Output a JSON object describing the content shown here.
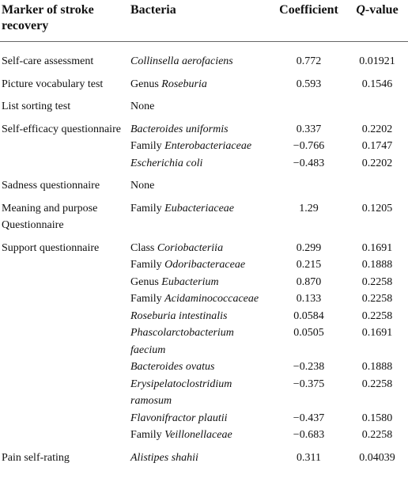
{
  "table": {
    "header": [
      "Marker of stroke recovery",
      "Bacteria",
      "Coefficient",
      {
        "italic": "Q",
        "text": "-value"
      }
    ],
    "rows": [
      {
        "marker": "Self-care assessment",
        "entries": [
          {
            "taxon": "Collinsella aerofaciens",
            "coefficient": "0.772",
            "q": "0.01921"
          }
        ]
      },
      {
        "marker": "Picture vocabulary test",
        "entries": [
          {
            "prefix": "Genus",
            "taxon": "Roseburia",
            "coefficient": "0.593",
            "q": "0.1546"
          }
        ]
      },
      {
        "marker": "List sorting test",
        "entries": [
          {
            "plain": "None"
          }
        ]
      },
      {
        "marker": "Self-efficacy questionnaire",
        "entries": [
          {
            "taxon": "Bacteroides uniformis",
            "coefficient": "0.337",
            "q": "0.2202"
          },
          {
            "prefix": "Family",
            "taxon": "Enterobacteriaceae",
            "coefficient": "−0.766",
            "q": "0.1747"
          },
          {
            "taxon": "Escherichia coli",
            "coefficient": "−0.483",
            "q": "0.2202"
          }
        ]
      },
      {
        "marker": "Sadness questionnaire",
        "entries": [
          {
            "plain": "None"
          }
        ]
      },
      {
        "marker": "Meaning and purpose Questionnaire",
        "entries": [
          {
            "prefix": "Family",
            "taxon": "Eubacteriaceae",
            "coefficient": "1.29",
            "q": "0.1205"
          }
        ]
      },
      {
        "marker": "Support questionnaire",
        "entries": [
          {
            "prefix": "Class",
            "taxon": "Coriobacteriia",
            "coefficient": "0.299",
            "q": "0.1691"
          },
          {
            "prefix": "Family",
            "taxon": "Odoribacteraceae",
            "coefficient": "0.215",
            "q": "0.1888"
          },
          {
            "prefix": "Genus",
            "taxon": "Eubacterium",
            "coefficient": "0.870",
            "q": "0.2258"
          },
          {
            "prefix": "Family",
            "taxon": "Acidaminococcaceae",
            "coefficient": "0.133",
            "q": "0.2258"
          },
          {
            "taxon": "Roseburia intestinalis",
            "coefficient": "0.0584",
            "q": "0.2258"
          },
          {
            "taxon": "Phascolarctobacterium faecium",
            "coefficient": "0.0505",
            "q": "0.1691"
          },
          {
            "taxon": "Bacteroides ovatus",
            "coefficient": "−0.238",
            "q": "0.1888"
          },
          {
            "taxon": "Erysipelatoclostridium ramosum",
            "coefficient": "−0.375",
            "q": "0.2258"
          },
          {
            "taxon": "Flavonifractor plautii",
            "coefficient": "−0.437",
            "q": "0.1580"
          },
          {
            "prefix": "Family",
            "taxon": "Veillonellaceae",
            "coefficient": "−0.683",
            "q": "0.2258"
          }
        ]
      },
      {
        "marker": "Pain self-rating",
        "entries": [
          {
            "taxon": "Alistipes shahii",
            "coefficient": "0.311",
            "q": "0.04039"
          }
        ]
      }
    ]
  }
}
